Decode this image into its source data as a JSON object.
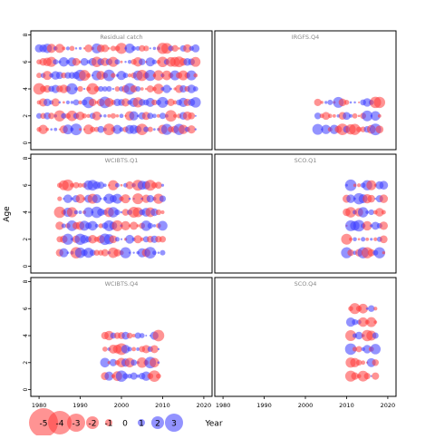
{
  "chart_data": {
    "type": "scatter",
    "description_kind": "residual bubble plot",
    "xlabel": "Year",
    "ylabel": "Age",
    "xlim": [
      1978,
      2022
    ],
    "ylim": [
      -0.5,
      8.3
    ],
    "x_ticks": [
      1980,
      1990,
      2000,
      2010,
      2020
    ],
    "y_ticks": [
      0,
      2,
      4,
      6,
      8
    ],
    "colors": {
      "positive": "#ff3b3b",
      "negative": "#3b3bff",
      "frame": "#000000",
      "title": "#888888"
    },
    "panels": [
      {
        "title": "Residual catch",
        "ages": [
          1,
          2,
          3,
          4,
          5,
          6,
          7
        ],
        "years": [
          1980,
          2018
        ]
      },
      {
        "title": "IRGFS.Q4",
        "ages": [
          1,
          2,
          3
        ],
        "years": [
          2003,
          2018
        ]
      },
      {
        "title": "WCIBTS.Q1",
        "ages": [
          1,
          2,
          3,
          4,
          5,
          6
        ],
        "years": [
          1985,
          2010
        ]
      },
      {
        "title": "SCO.Q1",
        "ages": [
          1,
          2,
          3,
          4,
          5,
          6
        ],
        "years": [
          2010,
          2019
        ]
      },
      {
        "title": "WCIBTS.Q4",
        "ages": [
          1,
          2,
          3,
          4
        ],
        "years": [
          1996,
          2009
        ]
      },
      {
        "title": "SCO.Q4",
        "ages": [
          1,
          2,
          3,
          4,
          5,
          6
        ],
        "years": [
          2011,
          2017
        ]
      }
    ],
    "legend": {
      "title": "",
      "values": [
        -5,
        -4,
        -3,
        -2,
        -1,
        0,
        1,
        2,
        3
      ],
      "labels": [
        "-5",
        "-4",
        "-3",
        "-2",
        "-1",
        "0",
        "1",
        "2",
        "3"
      ],
      "position": "bottom-left"
    },
    "legend_xlabel": "Year"
  }
}
